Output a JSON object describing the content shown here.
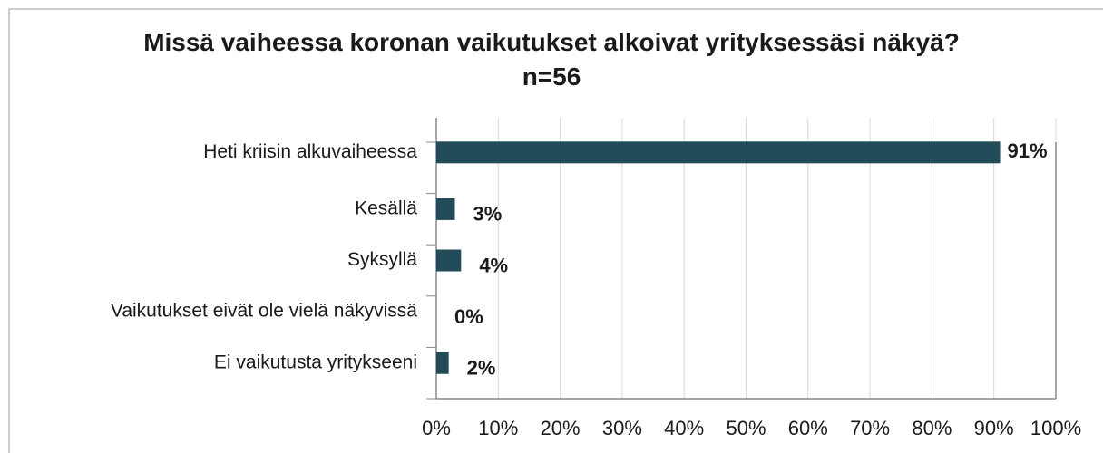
{
  "chart_data": {
    "type": "bar",
    "orientation": "horizontal",
    "title": "Missä vaiheessa koronan vaikutukset alkoivat yrityksessäsi näkyä? n=56",
    "categories": [
      "Heti kriisin alkuvaiheessa",
      "Kesällä",
      "Syksyllä",
      "Vaikutukset eivät ole vielä näkyvissä",
      "Ei vaikutusta yritykseeni"
    ],
    "values": [
      91,
      3,
      4,
      0,
      2
    ],
    "value_labels": [
      "91%",
      "3%",
      "4%",
      "0%",
      "2%"
    ],
    "color": "#234c5a",
    "xlim": [
      0,
      100
    ],
    "xticks": [
      {
        "value": 0,
        "label": "0%"
      },
      {
        "value": 10,
        "label": "10%"
      },
      {
        "value": 20,
        "label": "20%"
      },
      {
        "value": 30,
        "label": "30%"
      },
      {
        "value": 40,
        "label": "40%"
      },
      {
        "value": 50,
        "label": "50%"
      },
      {
        "value": 60,
        "label": "60%"
      },
      {
        "value": 70,
        "label": "70%"
      },
      {
        "value": 80,
        "label": "80%"
      },
      {
        "value": 90,
        "label": "90%"
      },
      {
        "value": 100,
        "label": "100%"
      }
    ],
    "grid": true
  }
}
